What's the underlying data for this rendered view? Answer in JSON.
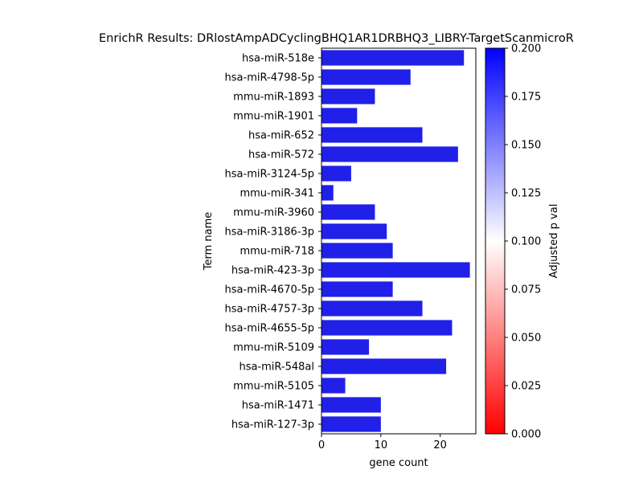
{
  "chart_data": {
    "type": "bar",
    "orientation": "horizontal",
    "title": "EnrichR Results: DRlostAmpADCyclingBHQ1AR1DRBHQ3_LIBRY-TargetScanmicroR",
    "xlabel": "gene count",
    "ylabel": "Term name",
    "xlim": [
      0,
      26
    ],
    "xticks": [
      0,
      10,
      20
    ],
    "bar_color": "#2020e8",
    "categories": [
      "hsa-miR-518e",
      "hsa-miR-4798-5p",
      "mmu-miR-1893",
      "mmu-miR-1901",
      "hsa-miR-652",
      "hsa-miR-572",
      "hsa-miR-3124-5p",
      "mmu-miR-341",
      "mmu-miR-3960",
      "hsa-miR-3186-3p",
      "mmu-miR-718",
      "hsa-miR-423-3p",
      "hsa-miR-4670-5p",
      "hsa-miR-4757-3p",
      "hsa-miR-4655-5p",
      "mmu-miR-5109",
      "hsa-miR-548al",
      "mmu-miR-5105",
      "hsa-miR-1471",
      "hsa-miR-127-3p"
    ],
    "values": [
      24,
      15,
      9,
      6,
      17,
      23,
      5,
      2,
      9,
      11,
      12,
      25,
      12,
      17,
      22,
      8,
      21,
      4,
      10,
      10
    ],
    "grid": false,
    "colorbar": {
      "label": "Adjusted p val",
      "range": [
        0,
        0.2
      ],
      "ticks": [
        "0.000",
        "0.025",
        "0.050",
        "0.075",
        "0.100",
        "0.125",
        "0.150",
        "0.175",
        "0.200"
      ],
      "colors": [
        "#ff0000",
        "#ffffff",
        "#0000ff"
      ]
    }
  }
}
